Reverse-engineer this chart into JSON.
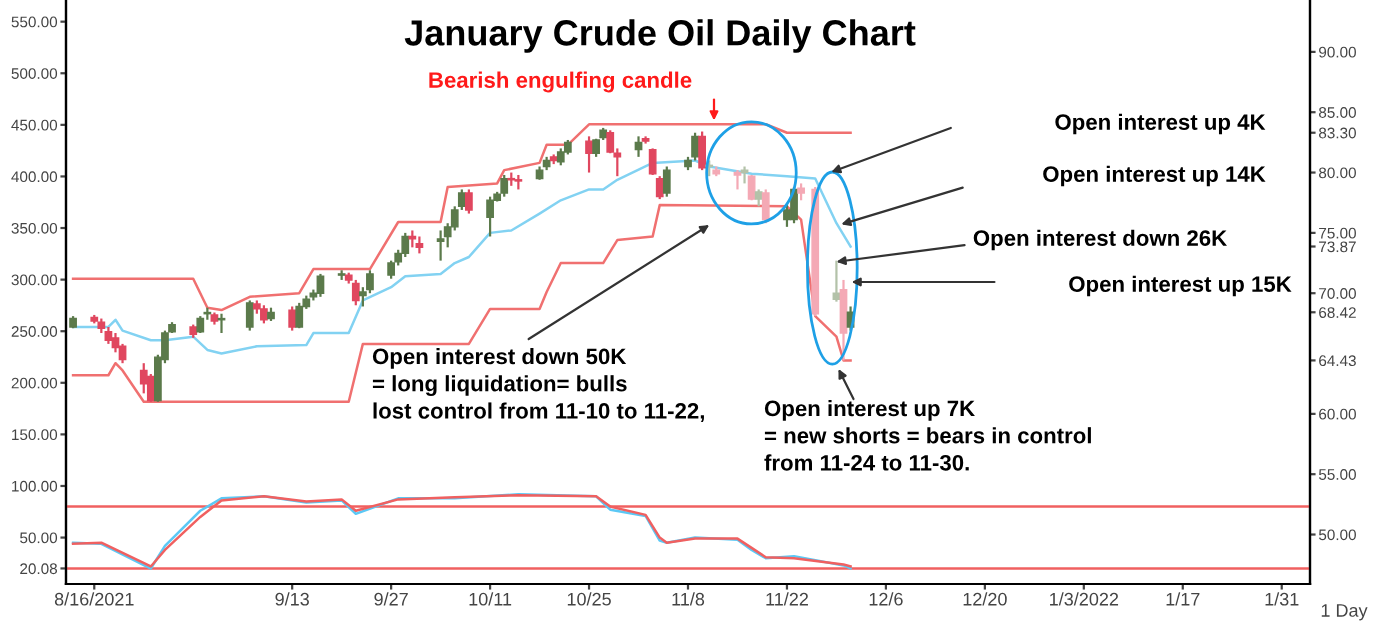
{
  "chart_data": {
    "type": "candlestick",
    "title": "January Crude Oil Daily Chart",
    "series": [
      {
        "x": [
          "2021-08-13",
          "2021-08-16",
          "2021-08-17",
          "2021-08-18",
          "2021-08-19",
          "2021-08-20",
          "2021-08-23",
          "2021-08-24",
          "2021-08-25",
          "2021-08-26",
          "2021-08-27",
          "2021-08-30",
          "2021-08-31",
          "2021-09-01",
          "2021-09-02",
          "2021-09-03",
          "2021-09-07",
          "2021-09-08",
          "2021-09-09",
          "2021-09-10",
          "2021-09-13",
          "2021-09-14",
          "2021-09-15",
          "2021-09-16",
          "2021-09-17",
          "2021-09-20",
          "2021-09-21",
          "2021-09-22",
          "2021-09-23",
          "2021-09-24",
          "2021-09-27",
          "2021-09-28",
          "2021-09-29",
          "2021-09-30",
          "2021-10-01",
          "2021-10-04",
          "2021-10-05",
          "2021-10-06",
          "2021-10-07",
          "2021-10-08",
          "2021-10-11",
          "2021-10-12",
          "2021-10-13",
          "2021-10-14",
          "2021-10-15",
          "2021-10-18",
          "2021-10-19",
          "2021-10-20",
          "2021-10-21",
          "2021-10-22",
          "2021-10-25",
          "2021-10-26",
          "2021-10-27",
          "2021-10-28",
          "2021-10-29",
          "2021-11-01",
          "2021-11-02",
          "2021-11-03",
          "2021-11-04",
          "2021-11-05",
          "2021-11-08",
          "2021-11-09",
          "2021-11-10",
          "2021-11-11",
          "2021-11-12",
          "2021-11-15",
          "2021-11-16",
          "2021-11-17",
          "2021-11-18",
          "2021-11-19",
          "2021-11-22",
          "2021-11-23",
          "2021-11-24",
          "2021-11-26",
          "2021-11-29",
          "2021-11-30",
          "2021-12-01"
        ],
        "ohlc": [
          [
            67.2,
            68.1,
            67.1,
            67.9
          ],
          [
            68.0,
            68.2,
            67.5,
            67.7
          ],
          [
            67.6,
            67.9,
            66.7,
            67.1
          ],
          [
            66.8,
            67.2,
            65.8,
            66.1
          ],
          [
            66.3,
            66.7,
            65.1,
            65.5
          ],
          [
            65.6,
            65.8,
            64.2,
            64.5
          ],
          [
            63.6,
            64.2,
            61.7,
            62.5
          ],
          [
            63.1,
            63.3,
            61.0,
            61.1
          ],
          [
            61.1,
            64.9,
            61.0,
            64.7
          ],
          [
            64.5,
            66.9,
            64.2,
            66.7
          ],
          [
            66.8,
            67.6,
            66.7,
            67.4
          ],
          [
            67.2,
            67.4,
            66.3,
            66.6
          ],
          [
            66.8,
            68.1,
            66.7,
            67.9
          ],
          [
            68.3,
            68.8,
            67.8,
            68.4
          ],
          [
            68.2,
            68.4,
            67.4,
            67.7
          ],
          [
            67.8,
            68.3,
            66.7,
            67.9
          ],
          [
            67.2,
            69.4,
            66.9,
            69.2
          ],
          [
            69.1,
            69.4,
            68.3,
            68.7
          ],
          [
            68.7,
            69.0,
            67.5,
            67.8
          ],
          [
            67.9,
            68.8,
            67.7,
            68.4
          ],
          [
            68.6,
            68.9,
            66.9,
            67.2
          ],
          [
            67.2,
            69.2,
            67.1,
            68.9
          ],
          [
            68.9,
            69.8,
            68.7,
            69.5
          ],
          [
            69.7,
            70.3,
            69.4,
            70.0
          ],
          [
            70.0,
            71.6,
            69.7,
            71.4
          ],
          [
            71.5,
            71.9,
            71.1,
            71.6
          ],
          [
            71.5,
            71.7,
            70.8,
            71.1
          ],
          [
            70.8,
            71.1,
            69.0,
            69.4
          ],
          [
            69.8,
            70.5,
            68.9,
            70.1
          ],
          [
            70.3,
            71.9,
            70.0,
            71.6
          ],
          [
            71.5,
            72.7,
            71.2,
            72.5
          ],
          [
            72.6,
            73.6,
            72.3,
            73.3
          ],
          [
            73.3,
            75.0,
            73.0,
            74.7
          ],
          [
            74.7,
            75.2,
            73.8,
            74.5
          ],
          [
            74.1,
            74.7,
            73.3,
            73.8
          ],
          [
            74.3,
            75.2,
            72.7,
            74.5
          ],
          [
            74.7,
            75.8,
            73.8,
            75.5
          ],
          [
            75.5,
            77.2,
            75.2,
            76.9
          ],
          [
            77.2,
            78.6,
            76.9,
            78.3
          ],
          [
            78.3,
            78.6,
            76.6,
            76.9
          ],
          [
            76.3,
            78.0,
            74.7,
            77.7
          ],
          [
            77.7,
            78.4,
            77.6,
            78.2
          ],
          [
            78.3,
            79.8,
            78.0,
            79.5
          ],
          [
            79.5,
            80.0,
            78.9,
            79.4
          ],
          [
            79.4,
            79.8,
            78.6,
            79.3
          ],
          [
            79.5,
            80.5,
            79.4,
            80.2
          ],
          [
            80.5,
            81.3,
            80.2,
            81.0
          ],
          [
            81.3,
            81.5,
            80.7,
            81.0
          ],
          [
            80.9,
            82.0,
            80.6,
            81.7
          ],
          [
            81.7,
            82.7,
            81.5,
            82.5
          ],
          [
            82.6,
            83.0,
            80.0,
            81.6
          ],
          [
            81.6,
            82.8,
            81.3,
            82.7
          ],
          [
            82.9,
            83.7,
            82.7,
            83.5
          ],
          [
            83.3,
            83.5,
            81.6,
            81.7
          ],
          [
            81.6,
            82.0,
            79.7,
            81.3
          ],
          [
            81.9,
            83.0,
            81.3,
            82.5
          ],
          [
            82.8,
            83.0,
            82.4,
            82.6
          ],
          [
            81.9,
            82.0,
            79.8,
            79.9
          ],
          [
            79.5,
            79.7,
            77.8,
            78.0
          ],
          [
            78.3,
            80.5,
            78.0,
            80.2
          ],
          [
            80.5,
            81.3,
            80.2,
            81.0
          ],
          [
            81.3,
            83.3,
            81.0,
            83.0
          ],
          [
            83.0,
            83.4,
            80.2,
            80.4
          ],
          [
            80.5,
            81.0,
            79.7,
            80.6
          ],
          [
            80.2,
            80.5,
            79.7,
            79.9
          ],
          [
            80.0,
            80.2,
            78.6,
            79.8
          ],
          [
            80.0,
            80.5,
            79.1,
            80.2
          ],
          [
            79.7,
            79.8,
            77.7,
            77.8
          ],
          [
            77.8,
            78.6,
            77.2,
            78.4
          ],
          [
            78.3,
            78.6,
            75.8,
            76.1
          ],
          [
            76.1,
            77.4,
            75.5,
            76.9
          ],
          [
            76.1,
            78.8,
            75.8,
            78.6
          ],
          [
            78.7,
            79.1,
            77.7,
            78.3
          ],
          [
            78.6,
            78.8,
            68.1,
            68.3
          ],
          [
            69.5,
            72.7,
            69.3,
            70.0
          ],
          [
            70.3,
            71.1,
            64.43,
            66.7
          ],
          [
            67.2,
            68.9,
            66.9,
            68.42
          ]
        ],
        "colors": [
          "#5b7a4b",
          "#e0475f",
          "#e0475f",
          "#e0475f",
          "#e0475f",
          "#e0475f",
          "#e0475f",
          "#e0475f",
          "#5b7a4b",
          "#5b7a4b",
          "#5b7a4b",
          "#e0475f",
          "#5b7a4b",
          "#5b7a4b",
          "#e0475f",
          "#5b7a4b",
          "#5b7a4b",
          "#e0475f",
          "#e0475f",
          "#5b7a4b",
          "#e0475f",
          "#5b7a4b",
          "#5b7a4b",
          "#5b7a4b",
          "#5b7a4b",
          "#5b7a4b",
          "#e0475f",
          "#e0475f",
          "#5b7a4b",
          "#5b7a4b",
          "#5b7a4b",
          "#5b7a4b",
          "#5b7a4b",
          "#e0475f",
          "#e0475f",
          "#5b7a4b",
          "#5b7a4b",
          "#5b7a4b",
          "#5b7a4b",
          "#e0475f",
          "#5b7a4b",
          "#5b7a4b",
          "#5b7a4b",
          "#e0475f",
          "#e0475f",
          "#5b7a4b",
          "#5b7a4b",
          "#e0475f",
          "#5b7a4b",
          "#5b7a4b",
          "#e0475f",
          "#5b7a4b",
          "#5b7a4b",
          "#e0475f",
          "#e0475f",
          "#5b7a4b",
          "#e0475f",
          "#e0475f",
          "#e0475f",
          "#5b7a4b",
          "#5b7a4b",
          "#5b7a4b",
          "#e0475f",
          "#b3c2a9",
          "#f4a9b5",
          "#f4a9b5",
          "#b3c2a9",
          "#f4a9b5",
          "#b3c2a9",
          "#f4a9b5",
          "#5b7a4b",
          "#5b7a4b",
          "#f4a9b5",
          "#f4a9b5",
          "#b3c2a9",
          "#f4a9b5",
          "#5b7a4b"
        ]
      },
      {
        "type": "line",
        "color": "#f07070",
        "x": [
          "2021-08-13",
          "2021-08-30",
          "2021-09-01",
          "2021-09-03",
          "2021-09-07",
          "2021-09-14",
          "2021-09-16",
          "2021-09-24",
          "2021-09-28",
          "2021-10-04",
          "2021-10-05",
          "2021-10-12",
          "2021-10-13",
          "2021-10-18",
          "2021-10-19",
          "2021-10-22",
          "2021-10-25",
          "2021-11-19",
          "2021-11-22",
          "2021-12-01"
        ],
        "values": [
          71.2,
          71.2,
          68.8,
          68.6,
          69.7,
          70.0,
          72.0,
          72.0,
          75.9,
          75.9,
          78.8,
          79.1,
          80.2,
          80.8,
          82.3,
          82.3,
          84.0,
          84.0,
          83.3,
          83.3
        ]
      },
      {
        "type": "line",
        "color": "#f07070",
        "x": [
          "2021-08-13",
          "2021-08-18",
          "2021-08-19",
          "2021-08-20",
          "2021-08-23",
          "2021-09-21",
          "2021-09-23",
          "2021-10-08",
          "2021-10-11",
          "2021-10-18",
          "2021-10-19",
          "2021-10-21",
          "2021-10-27",
          "2021-10-29",
          "2021-11-03",
          "2021-11-04",
          "2021-11-22",
          "2021-11-24",
          "2021-11-26",
          "2021-11-29",
          "2021-11-30",
          "2021-12-01"
        ],
        "values": [
          63.2,
          63.2,
          64.2,
          63.6,
          61.0,
          61.0,
          65.8,
          65.8,
          68.7,
          68.7,
          70.1,
          72.5,
          72.5,
          74.4,
          74.7,
          77.3,
          77.2,
          76.1,
          68.1,
          66.4,
          64.43,
          64.43
        ]
      },
      {
        "type": "line",
        "color": "#82d2f2",
        "x": [
          "2021-08-13",
          "2021-08-18",
          "2021-08-19",
          "2021-08-20",
          "2021-08-24",
          "2021-08-26",
          "2021-08-30",
          "2021-09-01",
          "2021-09-03",
          "2021-09-08",
          "2021-09-15",
          "2021-09-16",
          "2021-09-21",
          "2021-09-23",
          "2021-09-27",
          "2021-09-29",
          "2021-10-04",
          "2021-10-06",
          "2021-10-08",
          "2021-10-11",
          "2021-10-14",
          "2021-10-18",
          "2021-10-21",
          "2021-10-25",
          "2021-10-27",
          "2021-10-29",
          "2021-11-03",
          "2021-11-09",
          "2021-11-11",
          "2021-11-17",
          "2021-11-22",
          "2021-11-26",
          "2021-11-29",
          "2021-12-01"
        ],
        "values": [
          67.2,
          67.2,
          67.8,
          66.9,
          66.1,
          66.1,
          66.4,
          65.3,
          65.0,
          65.6,
          65.7,
          66.7,
          66.7,
          69.4,
          70.5,
          71.4,
          71.6,
          72.5,
          73.0,
          75.0,
          75.2,
          76.6,
          77.7,
          78.6,
          78.6,
          79.4,
          80.8,
          81.0,
          80.5,
          79.9,
          79.7,
          79.5,
          75.8,
          73.87
        ]
      },
      {
        "type": "line",
        "axis": "y2",
        "color": "#5bc8f5",
        "x": [
          "2021-08-13",
          "2021-08-17",
          "2021-08-24",
          "2021-08-26",
          "2021-08-31",
          "2021-09-03",
          "2021-09-09",
          "2021-09-15",
          "2021-09-20",
          "2021-09-22",
          "2021-09-28",
          "2021-10-06",
          "2021-10-15",
          "2021-10-26",
          "2021-10-28",
          "2021-11-02",
          "2021-11-04",
          "2021-11-05",
          "2021-11-09",
          "2021-11-15",
          "2021-11-17",
          "2021-11-19",
          "2021-11-23",
          "2021-11-30",
          "2021-12-01"
        ],
        "values": [
          45,
          44,
          20,
          42,
          76,
          88,
          90,
          84,
          86,
          73,
          88,
          88,
          92,
          90,
          77,
          71,
          47,
          45,
          50,
          48,
          38,
          30,
          32,
          23,
          20.08
        ]
      },
      {
        "type": "line",
        "axis": "y2",
        "color": "#f06060",
        "x": [
          "2021-08-13",
          "2021-08-17",
          "2021-08-24",
          "2021-08-26",
          "2021-08-31",
          "2021-09-03",
          "2021-09-09",
          "2021-09-15",
          "2021-09-20",
          "2021-09-22",
          "2021-09-28",
          "2021-10-06",
          "2021-10-15",
          "2021-10-26",
          "2021-10-28",
          "2021-11-02",
          "2021-11-04",
          "2021-11-05",
          "2021-11-09",
          "2021-11-15",
          "2021-11-17",
          "2021-11-19",
          "2021-11-23",
          "2021-11-30",
          "2021-12-01"
        ],
        "values": [
          44,
          45,
          22,
          38,
          70,
          86,
          90,
          85,
          87,
          76,
          87,
          89,
          91,
          90,
          80,
          72,
          50,
          45,
          49,
          49,
          40,
          31,
          30,
          24,
          22
        ]
      }
    ],
    "ref_lines": [
      {
        "axis": "y2",
        "value": 80,
        "color": "#f06060"
      },
      {
        "axis": "y2",
        "value": 20,
        "color": "#f06060"
      }
    ],
    "annotations": [
      "Bearish engulfing candle",
      "Open interest down 50K\n= long liquidation= bulls\nlost control from 11-10 to 11-22,",
      "Open interest up 4K",
      "Open interest up 14K",
      {
        "text": "Open interest down 26K",
        "x": "2021-11-29",
        "y": 72.6
      },
      "Open interest up 15K",
      "Open interest up 7K\n= new shorts = bears in control\nfrom 11-24 to 11-30.",
      "1 Day"
    ],
    "xlim": [
      "2021-08-12",
      "2022-02-04"
    ],
    "xticks": [
      {
        "value": "2021-08-16",
        "label": "8/16/2021"
      },
      {
        "value": "2021-09-13",
        "label": "9/13"
      },
      {
        "value": "2021-09-27",
        "label": "9/27"
      },
      {
        "value": "2021-10-11",
        "label": "10/11"
      },
      {
        "value": "2021-10-25",
        "label": "10/25"
      },
      {
        "value": "2021-11-08",
        "label": "11/8"
      },
      {
        "value": "2021-11-22",
        "label": "11/22"
      },
      {
        "value": "2021-12-06",
        "label": "12/6"
      },
      {
        "value": "2021-12-20",
        "label": "12/20"
      },
      {
        "value": "2022-01-03",
        "label": "1/3/2022"
      },
      {
        "value": "2022-01-17",
        "label": "1/17"
      },
      {
        "value": "2022-01-31",
        "label": "1/31"
      }
    ],
    "y2lim": [
      5,
      571
    ],
    "y2ticks": [
      {
        "value": 20.08,
        "label": "20.08"
      },
      {
        "value": 50,
        "label": "50.00"
      },
      {
        "value": 100,
        "label": "100.00"
      },
      {
        "value": 150,
        "label": "150.00"
      },
      {
        "value": 200,
        "label": "200.00"
      },
      {
        "value": 250,
        "label": "250.00"
      },
      {
        "value": 300,
        "label": "300.00"
      },
      {
        "value": 350,
        "label": "350.00"
      },
      {
        "value": 400,
        "label": "400.00"
      },
      {
        "value": 450,
        "label": "450.00"
      },
      {
        "value": 500,
        "label": "500.00"
      },
      {
        "value": 550,
        "label": "550.00"
      }
    ],
    "ylim": [
      45.9,
      94.3
    ],
    "yticks": [
      {
        "value": 50,
        "label": "50.00"
      },
      {
        "value": 55,
        "label": "55.00"
      },
      {
        "value": 60,
        "label": "60.00"
      },
      {
        "value": 64.43,
        "label": "64.43"
      },
      {
        "value": 68.42,
        "label": "68.42"
      },
      {
        "value": 70,
        "label": "70.00"
      },
      {
        "value": 73.87,
        "label": "73.87"
      },
      {
        "value": 75,
        "label": "75.00"
      },
      {
        "value": 80,
        "label": "80.00"
      },
      {
        "value": 83.3,
        "label": "83.30"
      },
      {
        "value": 85,
        "label": "85.00"
      },
      {
        "value": 90,
        "label": "90.00"
      }
    ],
    "grid": false,
    "legend": false
  }
}
